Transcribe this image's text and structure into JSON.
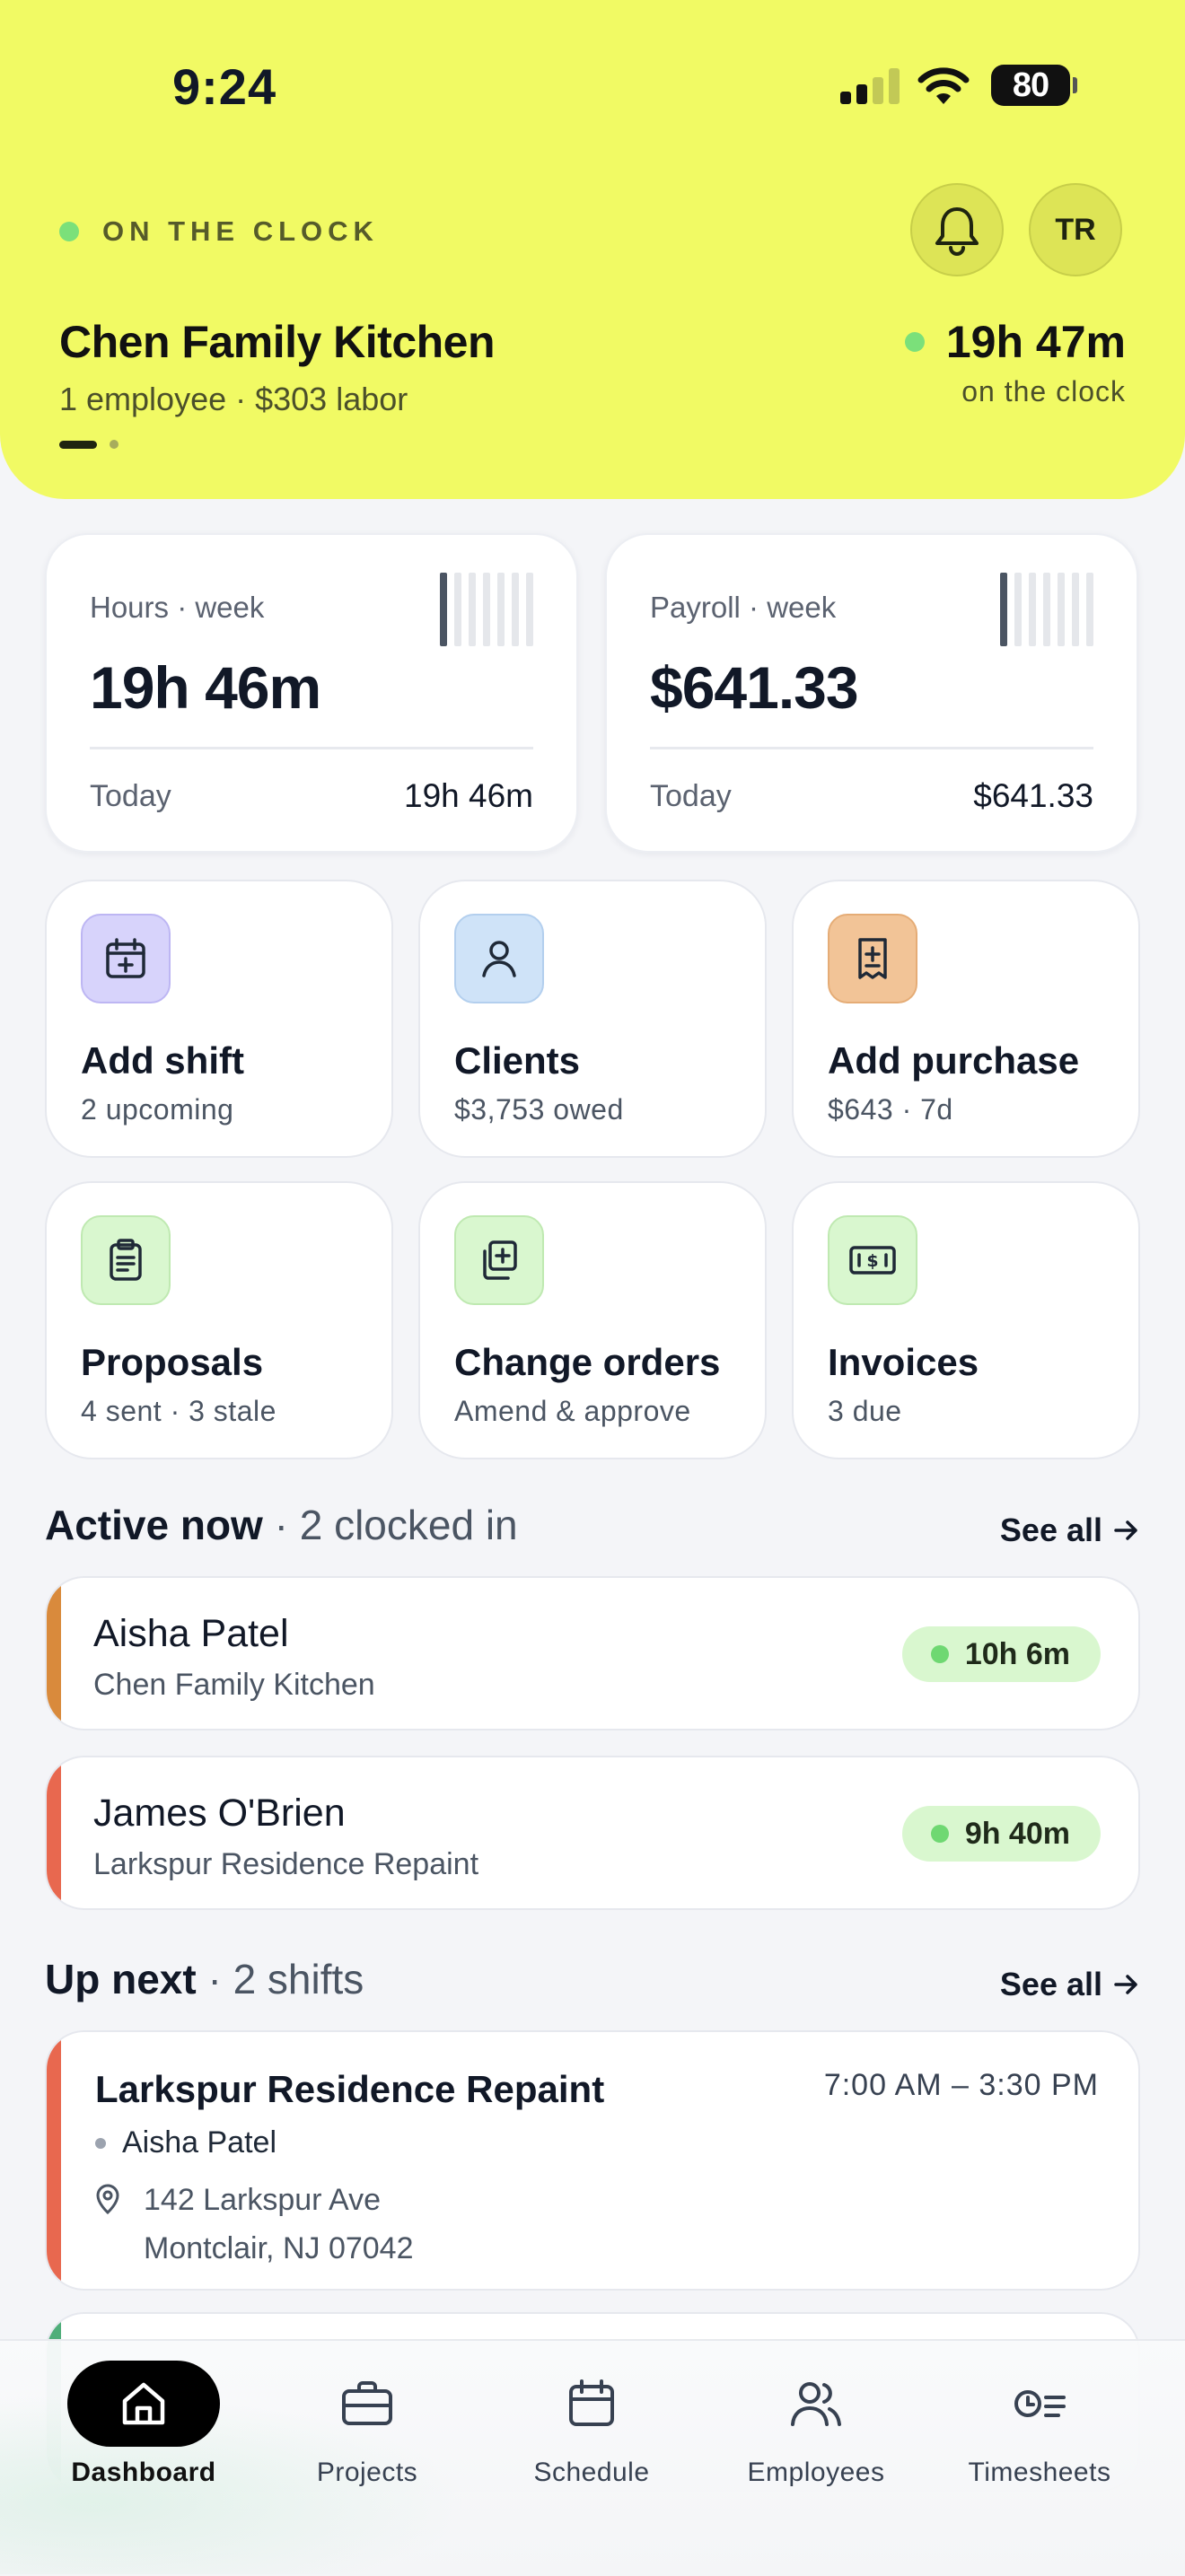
{
  "status_bar": {
    "time": "9:24",
    "battery": "80"
  },
  "header": {
    "status_label": "ON THE CLOCK",
    "avatar_initials": "TR",
    "project_title": "Chen Family Kitchen",
    "project_subtitle": "1 employee · $303 labor",
    "timer_value": "19h 47m",
    "timer_label": "on the clock",
    "accent_color": "#f1fa64"
  },
  "stats": {
    "hours": {
      "label": "Hours · week",
      "value": "19h 46m",
      "foot_label": "Today",
      "foot_value": "19h 46m"
    },
    "payroll": {
      "label": "Payroll · week",
      "value": "$641.33",
      "foot_label": "Today",
      "foot_value": "$641.33"
    }
  },
  "tiles": [
    {
      "title": "Add shift",
      "subtitle": "2 upcoming",
      "icon": "calendar-plus-icon",
      "color": "#d7d3fb"
    },
    {
      "title": "Clients",
      "subtitle": "$3,753 owed",
      "icon": "person-icon",
      "color": "#cfe3f8"
    },
    {
      "title": "Add purchase",
      "subtitle": "$643 · 7d",
      "icon": "receipt-icon",
      "color": "#f2c497"
    },
    {
      "title": "Proposals",
      "subtitle": "4 sent · 3 stale",
      "icon": "clipboard-icon",
      "color": "#d9f7cf"
    },
    {
      "title": "Change orders",
      "subtitle": "Amend & approve",
      "icon": "copy-plus-icon",
      "color": "#d9f7cf"
    },
    {
      "title": "Invoices",
      "subtitle": "3 due",
      "icon": "cash-icon",
      "color": "#d9f7cf"
    }
  ],
  "active_now": {
    "title": "Active now",
    "count_text": "· 2 clocked in",
    "see_all": "See all",
    "workers": [
      {
        "name": "Aisha Patel",
        "project": "Chen Family Kitchen",
        "time": "10h 6m",
        "color": "#d98a3c"
      },
      {
        "name": "James O'Brien",
        "project": "Larkspur Residence Repaint",
        "time": "9h 40m",
        "color": "#e8684f"
      }
    ]
  },
  "up_next": {
    "title": "Up next",
    "count_text": "· 2 shifts",
    "see_all": "See all",
    "shift": {
      "title": "Larkspur Residence Repaint",
      "time": "7:00 AM – 3:30 PM",
      "worker": "Aisha Patel",
      "address_line1": "142 Larkspur Ave",
      "address_line2": "Montclair, NJ 07042",
      "color": "#e8684f"
    }
  },
  "tabbar": [
    {
      "label": "Dashboard",
      "icon": "home-icon",
      "active": true
    },
    {
      "label": "Projects",
      "icon": "briefcase-icon",
      "active": false
    },
    {
      "label": "Schedule",
      "icon": "calendar-icon",
      "active": false
    },
    {
      "label": "Employees",
      "icon": "users-icon",
      "active": false
    },
    {
      "label": "Timesheets",
      "icon": "timesheet-icon",
      "active": false
    }
  ]
}
